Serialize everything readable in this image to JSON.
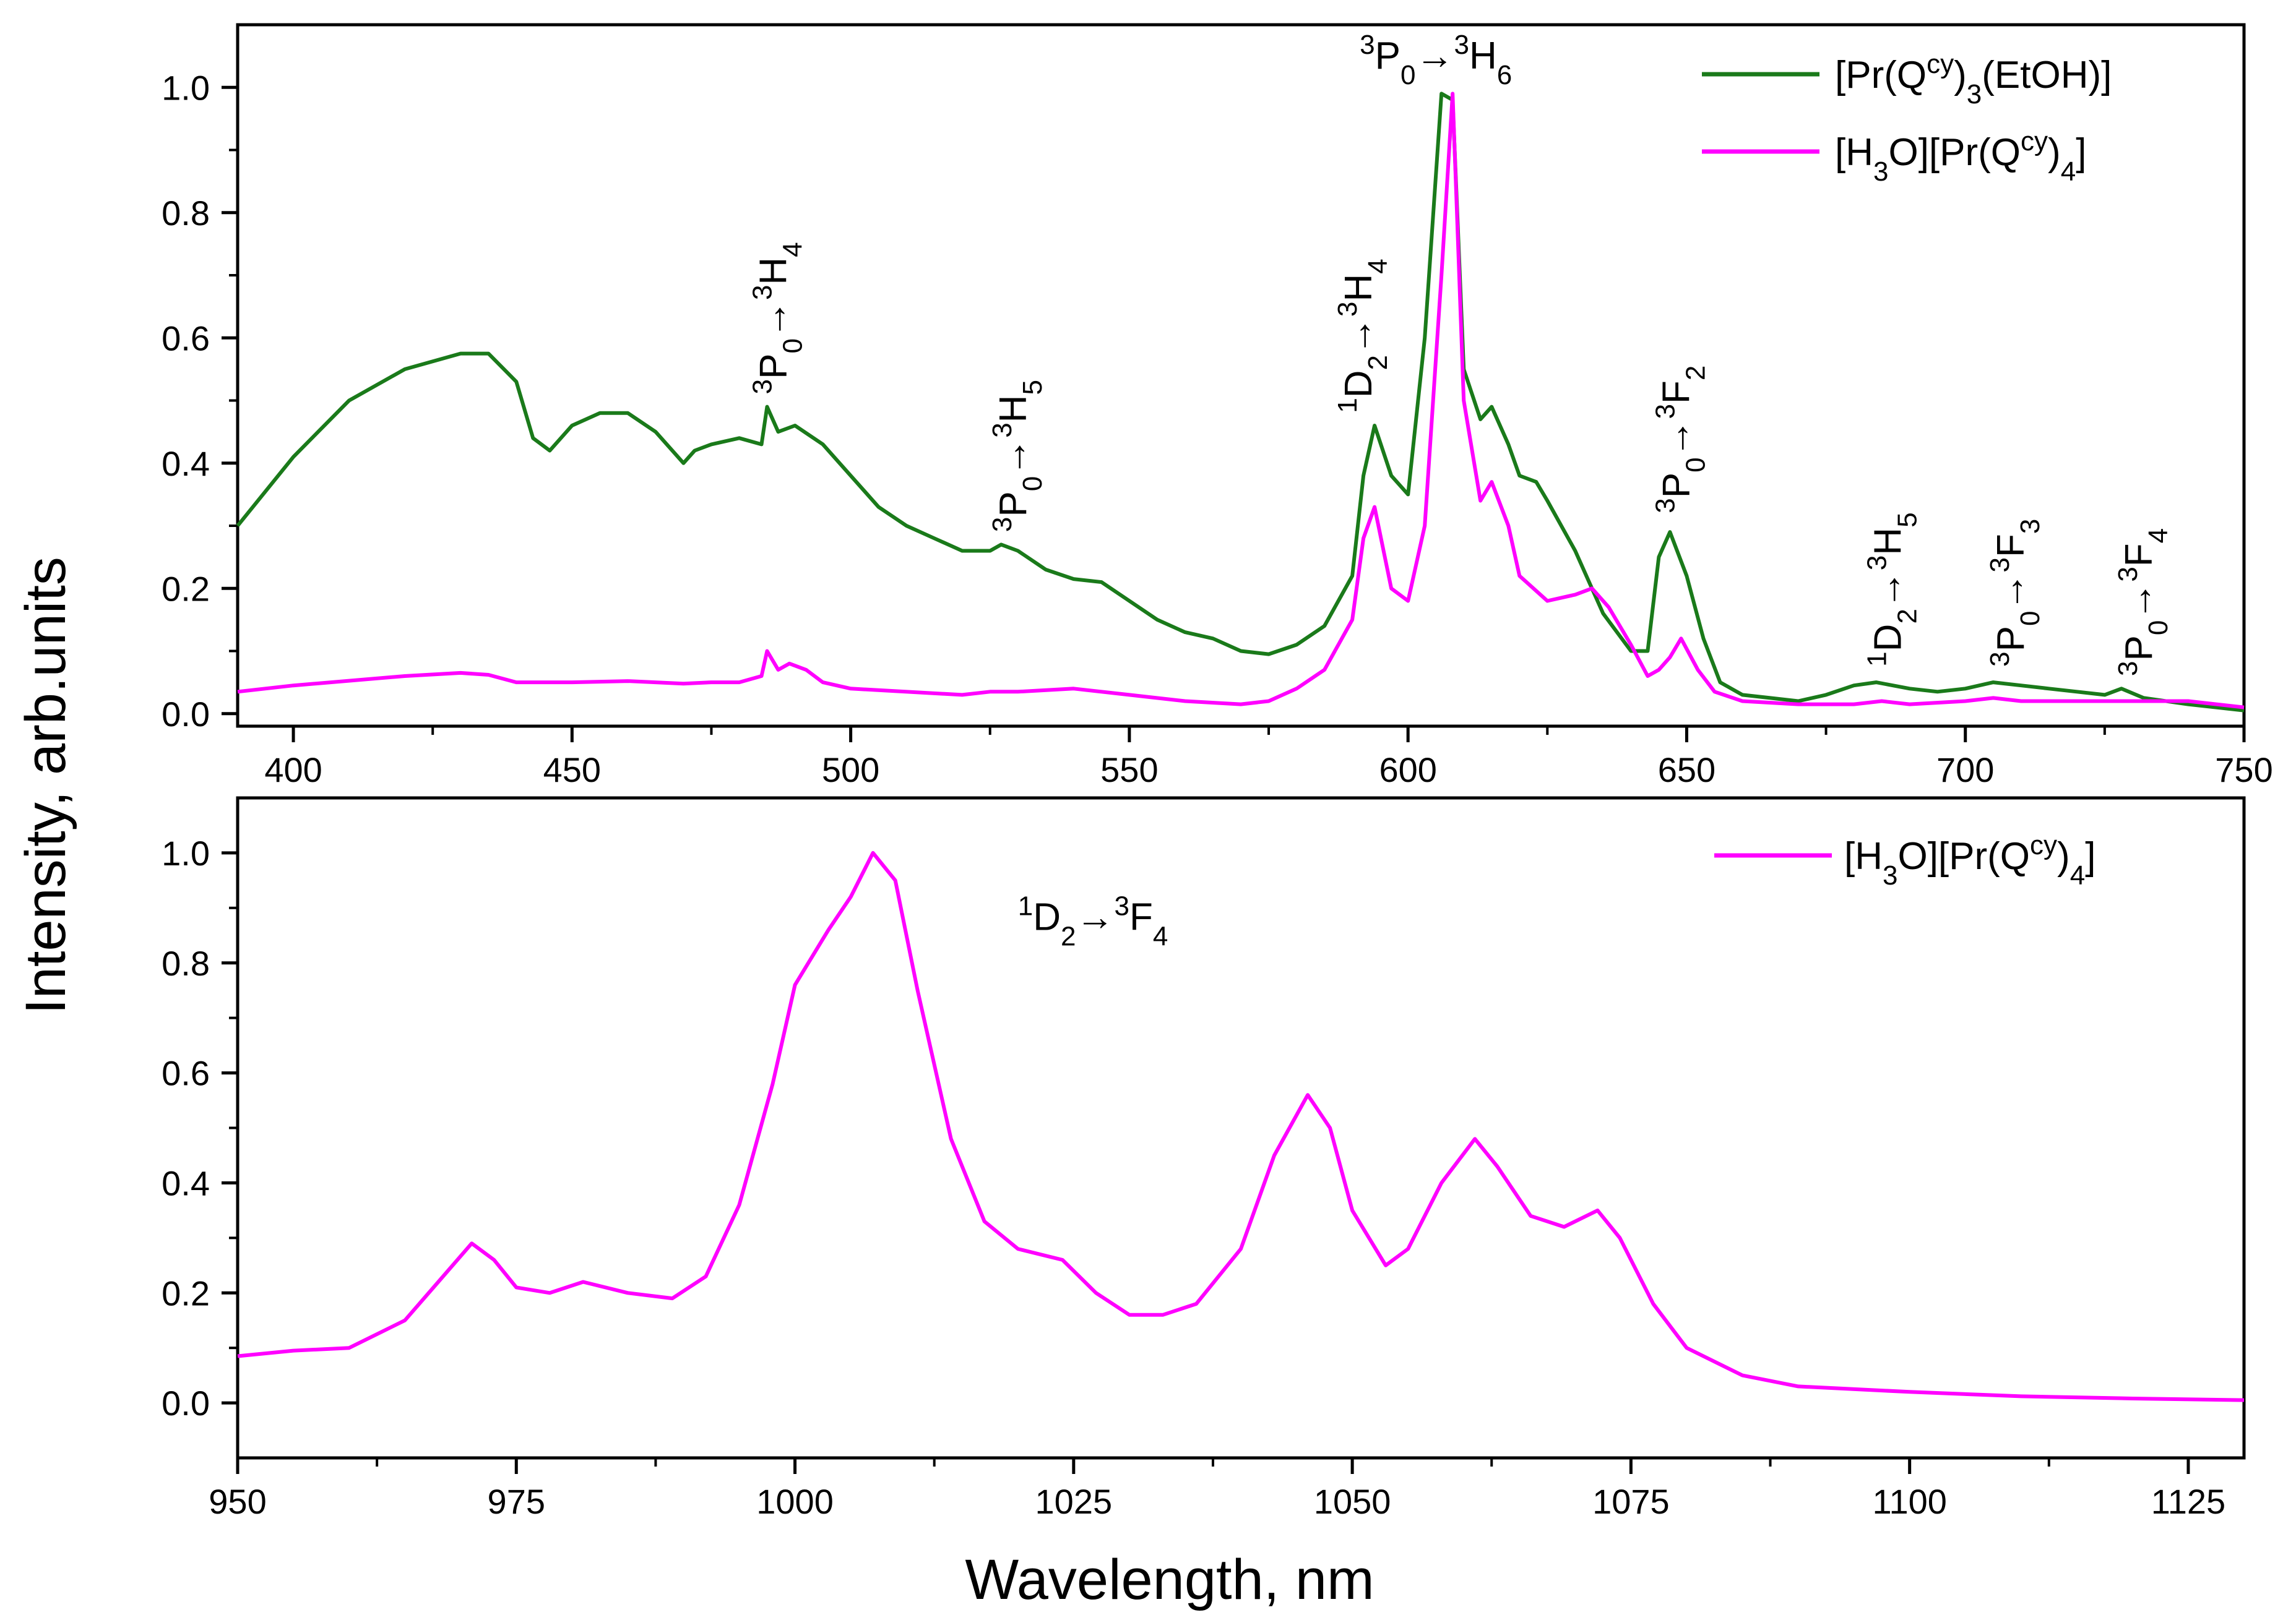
{
  "chart_data": [
    {
      "type": "line",
      "panel": "top",
      "title": "",
      "xlabel": "",
      "ylabel": "Intensity, arb.units",
      "xlim": [
        390,
        750
      ],
      "ylim": [
        -0.02,
        1.1
      ],
      "x_ticks": [
        400,
        450,
        500,
        550,
        600,
        650,
        700,
        750
      ],
      "y_ticks": [
        0.0,
        0.2,
        0.4,
        0.6,
        0.8,
        1.0
      ],
      "legend_position": "top-right",
      "series": [
        {
          "name": "[Pr(Q^cy)3(EtOH)]",
          "color": "#1a7a1a",
          "x": [
            390,
            400,
            410,
            420,
            430,
            435,
            440,
            443,
            446,
            450,
            455,
            460,
            465,
            470,
            472,
            475,
            480,
            484,
            485,
            487,
            490,
            495,
            500,
            505,
            510,
            515,
            520,
            525,
            527,
            530,
            535,
            540,
            545,
            550,
            555,
            560,
            565,
            570,
            575,
            580,
            585,
            590,
            592,
            594,
            597,
            600,
            603,
            606,
            608,
            610,
            613,
            615,
            618,
            620,
            623,
            625,
            630,
            635,
            640,
            643,
            645,
            647,
            650,
            653,
            656,
            660,
            665,
            670,
            675,
            680,
            684,
            690,
            695,
            700,
            705,
            710,
            715,
            720,
            725,
            728,
            732,
            740,
            750
          ],
          "y": [
            0.3,
            0.41,
            0.5,
            0.55,
            0.575,
            0.575,
            0.53,
            0.44,
            0.42,
            0.46,
            0.48,
            0.48,
            0.45,
            0.4,
            0.42,
            0.43,
            0.44,
            0.43,
            0.49,
            0.45,
            0.46,
            0.43,
            0.38,
            0.33,
            0.3,
            0.28,
            0.26,
            0.26,
            0.27,
            0.26,
            0.23,
            0.215,
            0.21,
            0.18,
            0.15,
            0.13,
            0.12,
            0.1,
            0.095,
            0.11,
            0.14,
            0.22,
            0.38,
            0.46,
            0.38,
            0.35,
            0.6,
            0.99,
            0.98,
            0.55,
            0.47,
            0.49,
            0.43,
            0.38,
            0.37,
            0.34,
            0.26,
            0.16,
            0.1,
            0.1,
            0.25,
            0.29,
            0.22,
            0.12,
            0.05,
            0.03,
            0.025,
            0.02,
            0.03,
            0.045,
            0.05,
            0.04,
            0.035,
            0.04,
            0.05,
            0.045,
            0.04,
            0.035,
            0.03,
            0.04,
            0.025,
            0.015,
            0.005
          ]
        },
        {
          "name": "[H3O][Pr(Q^cy)4]",
          "color": "#ff00ff",
          "x": [
            390,
            400,
            420,
            430,
            435,
            440,
            450,
            460,
            470,
            475,
            480,
            484,
            485,
            487,
            489,
            492,
            495,
            500,
            520,
            525,
            530,
            540,
            550,
            560,
            570,
            575,
            580,
            585,
            590,
            592,
            594,
            597,
            600,
            603,
            606,
            608,
            610,
            613,
            615,
            618,
            620,
            625,
            630,
            633,
            636,
            640,
            643,
            645,
            647,
            649,
            652,
            655,
            660,
            670,
            680,
            685,
            690,
            700,
            705,
            710,
            720,
            730,
            740,
            750
          ],
          "y": [
            0.035,
            0.045,
            0.06,
            0.065,
            0.062,
            0.05,
            0.05,
            0.052,
            0.048,
            0.05,
            0.05,
            0.06,
            0.1,
            0.07,
            0.08,
            0.07,
            0.05,
            0.04,
            0.03,
            0.035,
            0.035,
            0.04,
            0.03,
            0.02,
            0.015,
            0.02,
            0.04,
            0.07,
            0.15,
            0.28,
            0.33,
            0.2,
            0.18,
            0.3,
            0.7,
            0.99,
            0.5,
            0.34,
            0.37,
            0.3,
            0.22,
            0.18,
            0.19,
            0.2,
            0.17,
            0.11,
            0.06,
            0.07,
            0.09,
            0.12,
            0.07,
            0.035,
            0.02,
            0.015,
            0.015,
            0.02,
            0.015,
            0.02,
            0.025,
            0.02,
            0.02,
            0.02,
            0.02,
            0.01
          ]
        }
      ],
      "annotations": [
        {
          "x": 605,
          "y": 1.03,
          "text": "3P0→3H6",
          "rotation": 0
        },
        {
          "x": 486,
          "y": 0.51,
          "text": "3P0→3H4",
          "rotation": -90
        },
        {
          "x": 529,
          "y": 0.29,
          "text": "3P0→3H5",
          "rotation": -90
        },
        {
          "x": 591,
          "y": 0.48,
          "text": "1D2→3H4",
          "rotation": -90
        },
        {
          "x": 648,
          "y": 0.32,
          "text": "3P0→3F2",
          "rotation": -90
        },
        {
          "x": 686,
          "y": 0.075,
          "text": "1D2→3H5",
          "rotation": -90
        },
        {
          "x": 708,
          "y": 0.075,
          "text": "3P0→3F3",
          "rotation": -90
        },
        {
          "x": 731,
          "y": 0.06,
          "text": "3P0→3F4",
          "rotation": -90
        }
      ]
    },
    {
      "type": "line",
      "panel": "bottom",
      "title": "",
      "xlabel": "Wavelength, nm",
      "ylabel": "Intensity, arb.units",
      "xlim": [
        950,
        1130
      ],
      "ylim": [
        -0.1,
        1.1
      ],
      "x_ticks": [
        950,
        975,
        1000,
        1025,
        1050,
        1075,
        1100,
        1125
      ],
      "y_ticks": [
        0.0,
        0.2,
        0.4,
        0.6,
        0.8,
        1.0
      ],
      "legend_position": "top-right",
      "series": [
        {
          "name": "[H3O][Pr(Q^cy)4]",
          "color": "#ff00ff",
          "x": [
            950,
            955,
            960,
            965,
            968,
            971,
            973,
            975,
            978,
            981,
            985,
            989,
            992,
            995,
            998,
            1000,
            1003,
            1005,
            1007,
            1009,
            1011,
            1014,
            1017,
            1020,
            1024,
            1027,
            1030,
            1033,
            1036,
            1040,
            1043,
            1046,
            1048,
            1050,
            1053,
            1055,
            1058,
            1061,
            1063,
            1066,
            1069,
            1072,
            1074,
            1077,
            1080,
            1085,
            1090,
            1100,
            1110,
            1120,
            1130
          ],
          "y": [
            0.085,
            0.095,
            0.1,
            0.15,
            0.22,
            0.29,
            0.26,
            0.21,
            0.2,
            0.22,
            0.2,
            0.19,
            0.23,
            0.36,
            0.58,
            0.76,
            0.86,
            0.92,
            1.0,
            0.95,
            0.75,
            0.48,
            0.33,
            0.28,
            0.26,
            0.2,
            0.16,
            0.16,
            0.18,
            0.28,
            0.45,
            0.56,
            0.5,
            0.35,
            0.25,
            0.28,
            0.4,
            0.48,
            0.43,
            0.34,
            0.32,
            0.35,
            0.3,
            0.18,
            0.1,
            0.05,
            0.03,
            0.02,
            0.012,
            0.008,
            0.005
          ]
        }
      ],
      "annotations": [
        {
          "x": 1020,
          "y": 0.86,
          "text": "1D2→3F4",
          "rotation": 0
        }
      ]
    }
  ],
  "labels": {
    "ylabel": "Intensity, arb.units",
    "xlabel": "Wavelength, nm"
  }
}
